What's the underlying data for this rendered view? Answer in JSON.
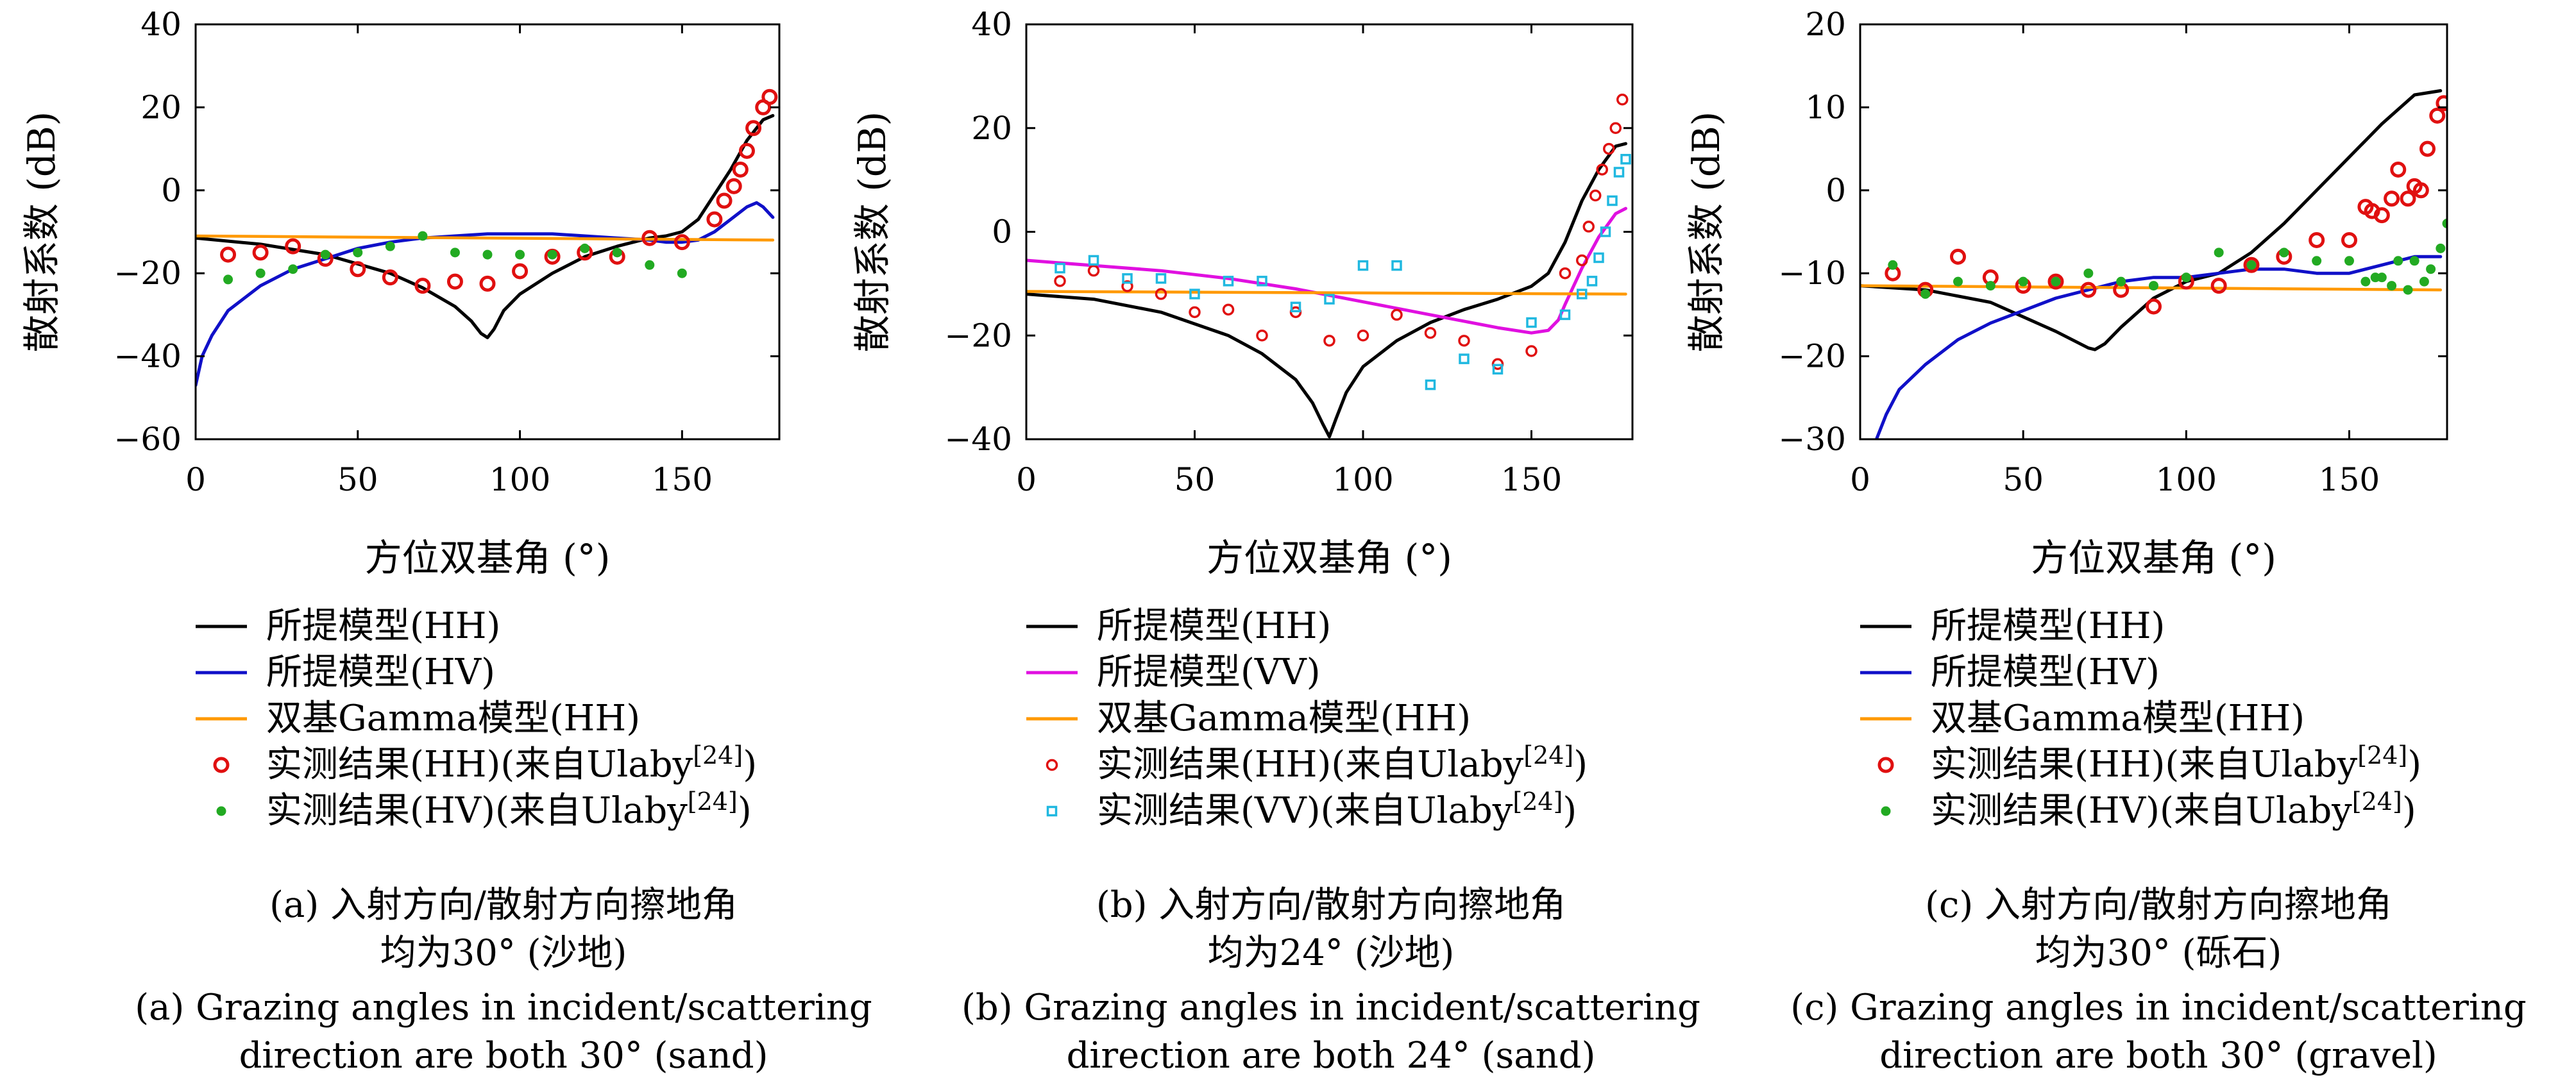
{
  "chart_data": [
    {
      "type": "line",
      "xlabel": "方位双基角 (°)",
      "ylabel": "散射系数 (dB)",
      "xlim": [
        0,
        180
      ],
      "ylim": [
        -60,
        40
      ],
      "xticks": [
        0,
        50,
        100,
        150
      ],
      "yticks": [
        -60,
        -40,
        -20,
        0,
        20,
        40
      ],
      "legend_position": "below",
      "caption_cn": [
        "(a) 入射方向/散射方向擦地角",
        "均为30° (沙地)"
      ],
      "caption_en": [
        "(a) Grazing angles in incident/scattering",
        "direction are both 30° (sand)"
      ],
      "series": [
        {
          "name": "所提模型(HH)",
          "kind": "line",
          "color": "#000000",
          "x": [
            0,
            20,
            40,
            60,
            70,
            80,
            85,
            88,
            90,
            92,
            95,
            100,
            110,
            120,
            130,
            140,
            145,
            150,
            155,
            160,
            165,
            170,
            175,
            178
          ],
          "y": [
            -11.5,
            -13,
            -15.5,
            -20,
            -23.5,
            -28,
            -31.5,
            -34.5,
            -35.5,
            -33.5,
            -29,
            -25,
            -20,
            -16,
            -13.5,
            -11.5,
            -11,
            -10,
            -7,
            -1,
            5,
            12,
            17,
            18
          ]
        },
        {
          "name": "所提模型(HV)",
          "kind": "line",
          "color": "#1010c8",
          "x": [
            0,
            2,
            5,
            10,
            20,
            30,
            40,
            50,
            60,
            70,
            80,
            90,
            100,
            110,
            120,
            130,
            140,
            145,
            150,
            155,
            160,
            165,
            170,
            173,
            175,
            178
          ],
          "y": [
            -47,
            -40,
            -35,
            -29,
            -23,
            -19,
            -16.5,
            -14,
            -12.5,
            -11.5,
            -11,
            -10.5,
            -10.5,
            -10.5,
            -11,
            -11.5,
            -12,
            -12.5,
            -12.5,
            -12,
            -10,
            -7,
            -4,
            -3,
            -4,
            -6.5
          ]
        },
        {
          "name": "双基Gamma模型(HH)",
          "kind": "line",
          "color": "#ff9900",
          "x": [
            0,
            178
          ],
          "y": [
            -11,
            -12
          ]
        },
        {
          "name": "实测结果(HH)(来自Ulaby[24])",
          "kind": "scatter-ring",
          "color": "#e01010",
          "x": [
            10,
            20,
            30,
            40,
            50,
            60,
            70,
            80,
            90,
            100,
            110,
            120,
            130,
            140,
            150,
            160,
            163,
            166,
            168,
            170,
            172,
            175,
            177
          ],
          "y": [
            -15.5,
            -15,
            -13.5,
            -16.5,
            -19,
            -21,
            -23,
            -22,
            -22.5,
            -19.5,
            -16,
            -15,
            -16,
            -11.5,
            -12.5,
            -7,
            -2.5,
            1,
            5,
            9.5,
            15,
            20,
            22.5
          ]
        },
        {
          "name": "实测结果(HV)(来自Ulaby[24])",
          "kind": "scatter-dot",
          "color": "#22aa22",
          "x": [
            10,
            20,
            30,
            40,
            50,
            60,
            70,
            80,
            90,
            100,
            110,
            120,
            130,
            140,
            150
          ],
          "y": [
            -21.5,
            -20,
            -19,
            -15.5,
            -15,
            -13.5,
            -11,
            -15,
            -15.5,
            -15.5,
            -15.5,
            -14,
            -15,
            -18,
            -20
          ]
        }
      ]
    },
    {
      "type": "line",
      "xlabel": "方位双基角 (°)",
      "ylabel": "散射系数 (dB)",
      "xlim": [
        0,
        180
      ],
      "ylim": [
        -40,
        40
      ],
      "xticks": [
        0,
        50,
        100,
        150
      ],
      "yticks": [
        -40,
        -20,
        0,
        20,
        40
      ],
      "legend_position": "below",
      "caption_cn": [
        "(b) 入射方向/散射方向擦地角",
        "均为24° (沙地)"
      ],
      "caption_en": [
        "(b) Grazing angles in incident/scattering",
        "direction are both 24° (sand)"
      ],
      "series": [
        {
          "name": "所提模型(HH)",
          "kind": "line",
          "color": "#000000",
          "x": [
            0,
            20,
            40,
            60,
            70,
            80,
            85,
            88,
            90,
            92,
            95,
            100,
            110,
            120,
            130,
            140,
            150,
            155,
            160,
            165,
            170,
            175,
            178
          ],
          "y": [
            -12,
            -13,
            -15.5,
            -20,
            -23.5,
            -28.5,
            -33,
            -37,
            -39.5,
            -36,
            -31,
            -26,
            -21,
            -17.5,
            -15,
            -13,
            -10.5,
            -8,
            -2,
            6,
            12,
            16.5,
            17
          ]
        },
        {
          "name": "所提模型(VV)",
          "kind": "line",
          "color": "#e010e0",
          "x": [
            0,
            20,
            40,
            60,
            80,
            100,
            120,
            140,
            150,
            155,
            158,
            160,
            165,
            170,
            175,
            178
          ],
          "y": [
            -5.5,
            -6.5,
            -7.5,
            -9,
            -11,
            -13.5,
            -16,
            -18.5,
            -19.5,
            -19,
            -17,
            -14,
            -7,
            -1,
            3.5,
            4.5
          ]
        },
        {
          "name": "双基Gamma模型(HH)",
          "kind": "line",
          "color": "#ff9900",
          "x": [
            0,
            178
          ],
          "y": [
            -11.5,
            -12
          ]
        },
        {
          "name": "实测结果(HH)(来自Ulaby[24])",
          "kind": "scatter-ring",
          "color": "#e01010",
          "x": [
            10,
            20,
            30,
            40,
            50,
            60,
            70,
            80,
            90,
            100,
            110,
            120,
            130,
            140,
            150,
            160,
            165,
            167,
            169,
            171,
            173,
            175,
            177
          ],
          "y": [
            -9.5,
            -7.5,
            -10.5,
            -12,
            -15.5,
            -15,
            -20,
            -15.5,
            -21,
            -20,
            -16,
            -19.5,
            -21,
            -25.5,
            -23,
            -8,
            -5.5,
            1,
            7,
            12,
            16,
            20,
            25.5
          ]
        },
        {
          "name": "实测结果(VV)(来自Ulaby[24])",
          "kind": "scatter-square",
          "color": "#20b8e0",
          "x": [
            10,
            20,
            30,
            40,
            50,
            60,
            70,
            80,
            90,
            100,
            110,
            120,
            130,
            140,
            150,
            160,
            165,
            168,
            170,
            172,
            174,
            176,
            178
          ],
          "y": [
            -7,
            -5.5,
            -9,
            -9,
            -12,
            -9.5,
            -9.5,
            -14.5,
            -13,
            -6.5,
            -6.5,
            -29.5,
            -24.5,
            -26.5,
            -17.5,
            -16,
            -12,
            -9.5,
            -5,
            0,
            6,
            11.5,
            14
          ]
        }
      ]
    },
    {
      "type": "line",
      "xlabel": "方位双基角 (°)",
      "ylabel": "散射系数 (dB)",
      "xlim": [
        0,
        180
      ],
      "ylim": [
        -30,
        20
      ],
      "xticks": [
        0,
        50,
        100,
        150
      ],
      "yticks": [
        -30,
        -20,
        -10,
        0,
        10,
        20
      ],
      "legend_position": "below",
      "caption_cn": [
        "(c) 入射方向/散射方向擦地角",
        "均为30° (砾石)"
      ],
      "caption_en": [
        "(c) Grazing angles in incident/scattering",
        "direction are both 30° (gravel)"
      ],
      "series": [
        {
          "name": "所提模型(HH)",
          "kind": "line",
          "color": "#000000",
          "x": [
            0,
            20,
            40,
            60,
            70,
            72,
            75,
            80,
            90,
            100,
            110,
            120,
            130,
            140,
            150,
            160,
            170,
            178
          ],
          "y": [
            -11.5,
            -12,
            -13.5,
            -17,
            -19,
            -19.2,
            -18.5,
            -16.5,
            -13,
            -11,
            -10,
            -7.5,
            -4,
            0,
            4,
            8,
            11.5,
            12
          ]
        },
        {
          "name": "所提模型(HV)",
          "kind": "line",
          "color": "#1010c8",
          "x": [
            5,
            8,
            12,
            20,
            30,
            40,
            50,
            60,
            70,
            80,
            90,
            100,
            110,
            120,
            130,
            140,
            150,
            160,
            170,
            178
          ],
          "y": [
            -30,
            -27,
            -24,
            -21,
            -18,
            -16,
            -14.5,
            -13,
            -12,
            -11,
            -10.5,
            -10.5,
            -10,
            -9.5,
            -9.5,
            -10,
            -10,
            -9,
            -8,
            -8
          ]
        },
        {
          "name": "双基Gamma模型(HH)",
          "kind": "line",
          "color": "#ff9900",
          "x": [
            0,
            178
          ],
          "y": [
            -11.5,
            -12
          ]
        },
        {
          "name": "实测结果(HH)(来自Ulaby[24])",
          "kind": "scatter-ring",
          "color": "#e01010",
          "x": [
            10,
            20,
            30,
            40,
            50,
            60,
            70,
            80,
            90,
            100,
            110,
            120,
            130,
            140,
            150,
            155,
            157,
            160,
            163,
            165,
            168,
            170,
            172,
            174,
            177,
            179
          ],
          "y": [
            -10,
            -12,
            -8,
            -10.5,
            -11.5,
            -11,
            -12,
            -12,
            -14,
            -11,
            -11.5,
            -9,
            -8,
            -6,
            -6,
            -2,
            -2.5,
            -3,
            -1,
            2.5,
            -1,
            0.5,
            0,
            5,
            9,
            10.5
          ]
        },
        {
          "name": "实测结果(HV)(来自Ulaby[24])",
          "kind": "scatter-dot",
          "color": "#22aa22",
          "x": [
            10,
            20,
            30,
            40,
            50,
            60,
            70,
            80,
            90,
            100,
            110,
            120,
            130,
            140,
            150,
            155,
            158,
            160,
            163,
            165,
            168,
            170,
            173,
            175,
            178,
            180
          ],
          "y": [
            -9,
            -12.5,
            -11,
            -11.5,
            -11,
            -11,
            -10,
            -11,
            -11.5,
            -10.5,
            -7.5,
            -9,
            -7.5,
            -8.5,
            -8.5,
            -11,
            -10.5,
            -10.5,
            -11.5,
            -8.5,
            -12,
            -8.5,
            -11,
            -9.5,
            -7,
            -4
          ]
        }
      ]
    }
  ]
}
